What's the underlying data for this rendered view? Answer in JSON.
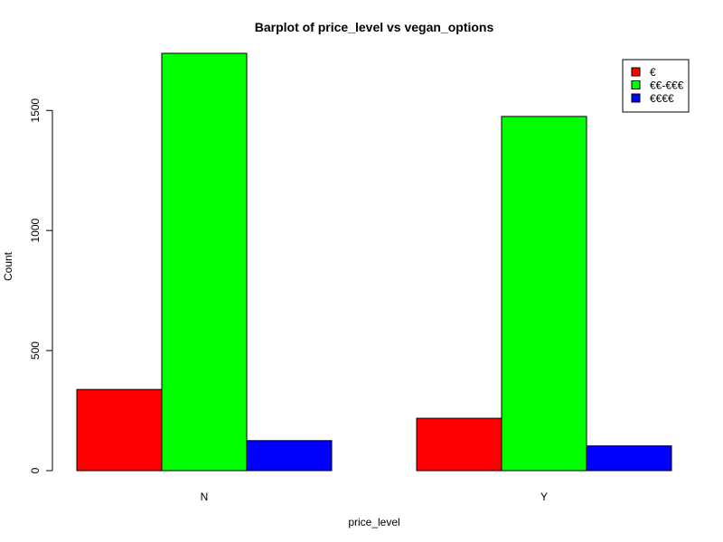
{
  "chart_data": {
    "type": "bar",
    "title": "Barplot of price_level vs vegan_options",
    "xlabel": "price_level",
    "ylabel": "Count",
    "categories": [
      "N",
      "Y"
    ],
    "series": [
      {
        "name": "€",
        "color": "#ff0000",
        "values": [
          338,
          218
        ]
      },
      {
        "name": "€€-€€€",
        "color": "#00ff00",
        "values": [
          1738,
          1475
        ]
      },
      {
        "name": "€€€€",
        "color": "#0000ff",
        "values": [
          125,
          103
        ]
      }
    ],
    "ylim": [
      0,
      1738
    ],
    "yticks": [
      0,
      500,
      1000,
      1500
    ],
    "ytick_labels": [
      "0",
      "500",
      "1000",
      "1500"
    ],
    "legend_position": "top-right"
  }
}
